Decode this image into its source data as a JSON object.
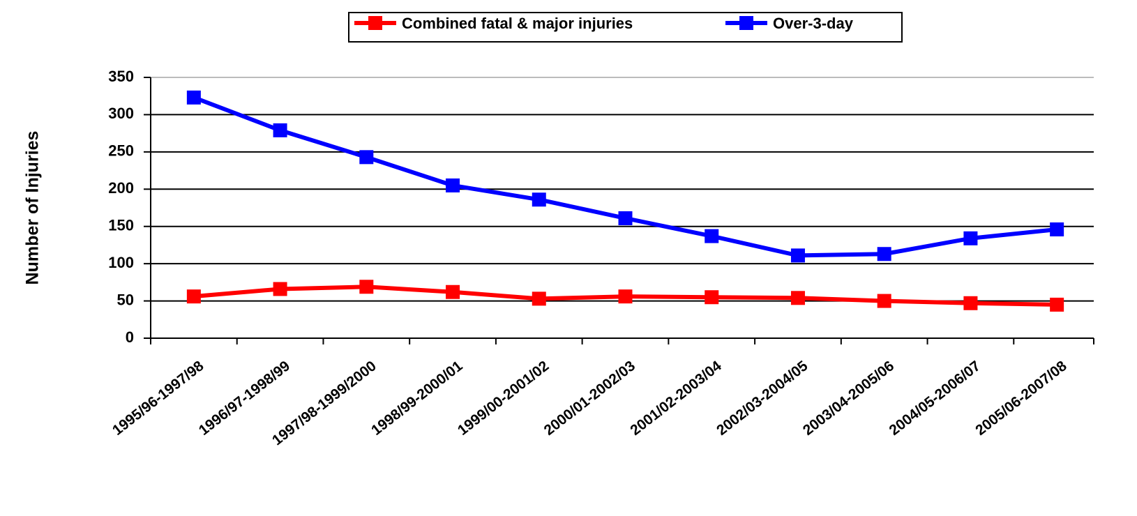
{
  "chart_data": {
    "type": "line",
    "y_label": "Number of Injuries",
    "categories": [
      "1995/96-1997/98",
      "1996/97-1998/99",
      "1997/98-1999/2000",
      "1998/99-2000/01",
      "1999/00-2001/02",
      "2000/01-2002/03",
      "2001/02-2003/04",
      "2002/03-2004/05",
      "2003/04-2005/06",
      "2004/05-2006/07",
      "2005/06-2007/08"
    ],
    "series": [
      {
        "name": "Combined fatal & major injuries",
        "color": "#ff0000",
        "values": [
          56,
          66,
          69,
          62,
          53,
          56,
          55,
          54,
          50,
          47,
          45
        ]
      },
      {
        "name": "Over-3-day",
        "color": "#0000ff",
        "values": [
          323,
          279,
          243,
          205,
          186,
          161,
          137,
          111,
          113,
          134,
          146
        ]
      }
    ],
    "ylim": [
      0,
      350
    ],
    "yticks": [
      0,
      50,
      100,
      150,
      200,
      250,
      300,
      350
    ],
    "grid": true
  }
}
